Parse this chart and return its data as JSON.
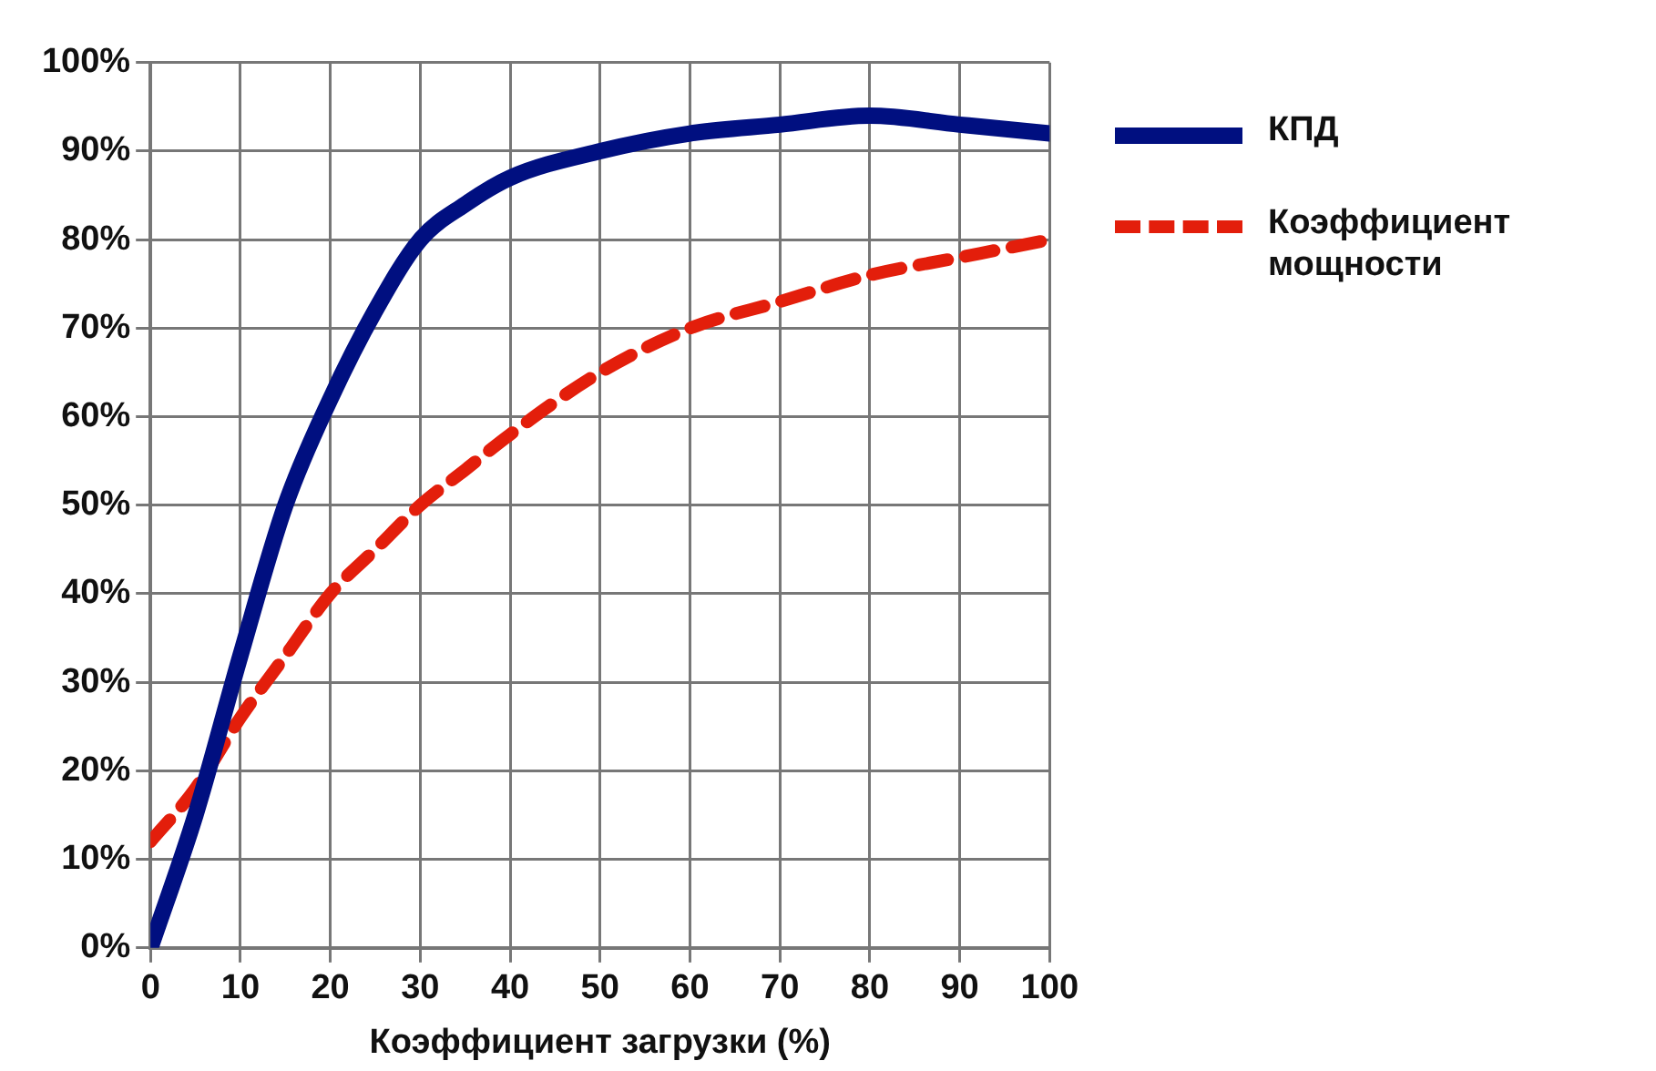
{
  "chart_data": {
    "type": "line",
    "xlabel": "Коэффициент загрузки (%)",
    "x": [
      0,
      5,
      10,
      15,
      20,
      25,
      30,
      35,
      40,
      50,
      60,
      70,
      80,
      90,
      100
    ],
    "series": [
      {
        "name": "КПД",
        "color": "#000f80",
        "line_style": "solid",
        "values": [
          0,
          15,
          33,
          50,
          62,
          72,
          80,
          84,
          87,
          90,
          92,
          93,
          94,
          93,
          92
        ]
      },
      {
        "name": "Коэффициент мощности",
        "color": "#e31e0b",
        "line_style": "dashed",
        "values": [
          12,
          18,
          26,
          33,
          40,
          45,
          50,
          54,
          58,
          65,
          70,
          73,
          76,
          78,
          80
        ]
      }
    ],
    "xlim": [
      0,
      100
    ],
    "xticks": [
      0,
      10,
      20,
      30,
      40,
      50,
      60,
      70,
      80,
      90,
      100
    ],
    "ylim": [
      0,
      100
    ],
    "yticks": [
      {
        "value": 0,
        "label": "0%"
      },
      {
        "value": 10,
        "label": "10%"
      },
      {
        "value": 20,
        "label": "20%"
      },
      {
        "value": 30,
        "label": "30%"
      },
      {
        "value": 40,
        "label": "40%"
      },
      {
        "value": 50,
        "label": "50%"
      },
      {
        "value": 60,
        "label": "60%"
      },
      {
        "value": 70,
        "label": "70%"
      },
      {
        "value": 80,
        "label": "80%"
      },
      {
        "value": 90,
        "label": "90%"
      },
      {
        "value": 100,
        "label": "100%"
      }
    ],
    "grid": true,
    "legend": "right",
    "marker": "none"
  }
}
